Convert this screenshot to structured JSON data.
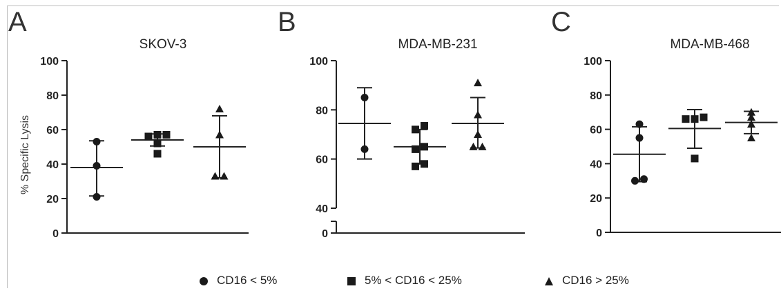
{
  "chart_data": [
    {
      "type": "scatter",
      "panel_label": "A",
      "title": "SKOV-3",
      "ylabel": "% Specific Lysis",
      "xlabel": "",
      "ylim": [
        0,
        100
      ],
      "yticks": [
        "0",
        "20",
        "40",
        "60",
        "80",
        "100"
      ],
      "axis_break": false,
      "groups": [
        {
          "name": "CD16 < 5%",
          "marker": "circle",
          "values": [
            21,
            39,
            53
          ],
          "mean": 38,
          "sd_low": 21.5,
          "sd_high": 53.5
        },
        {
          "name": "5% < CD16 < 25%",
          "marker": "square",
          "values": [
            46,
            52,
            56,
            57,
            57
          ],
          "mean": 54,
          "sd_low": 50.5,
          "sd_high": 57.5
        },
        {
          "name": "CD16 > 25%",
          "marker": "triangle",
          "values": [
            33,
            33,
            57,
            72
          ],
          "mean": 50,
          "sd_low": 32,
          "sd_high": 68
        }
      ]
    },
    {
      "type": "scatter",
      "panel_label": "B",
      "title": "MDA-MB-231",
      "ylabel": "",
      "xlabel": "",
      "ylim": [
        0,
        100
      ],
      "yticks": [
        "0",
        "40",
        "60",
        "80",
        "100"
      ],
      "axis_break": true,
      "groups": [
        {
          "name": "CD16 < 5%",
          "marker": "circle",
          "values": [
            64,
            85
          ],
          "mean": 74.5,
          "sd_low": 60,
          "sd_high": 89
        },
        {
          "name": "5% < CD16 < 25%",
          "marker": "square",
          "values": [
            57,
            58,
            64,
            65,
            72,
            73.5
          ],
          "mean": 65,
          "sd_low": 58,
          "sd_high": 72
        },
        {
          "name": "CD16 > 25%",
          "marker": "triangle",
          "values": [
            65,
            65,
            70,
            78,
            91
          ],
          "mean": 74.5,
          "sd_low": 64.5,
          "sd_high": 85
        }
      ]
    },
    {
      "type": "scatter",
      "panel_label": "C",
      "title": "MDA-MB-468",
      "ylabel": "",
      "xlabel": "",
      "ylim": [
        0,
        100
      ],
      "yticks": [
        "0",
        "20",
        "40",
        "60",
        "80",
        "100"
      ],
      "axis_break": false,
      "groups": [
        {
          "name": "CD16 < 5%",
          "marker": "circle",
          "values": [
            30,
            31,
            55,
            63
          ],
          "mean": 45.5,
          "sd_low": 29.5,
          "sd_high": 61.5
        },
        {
          "name": "5% < CD16 < 25%",
          "marker": "square",
          "values": [
            43,
            66,
            66,
            67
          ],
          "mean": 60.5,
          "sd_low": 49,
          "sd_high": 71.5
        },
        {
          "name": "CD16 > 25%",
          "marker": "triangle",
          "values": [
            55,
            63,
            67,
            70
          ],
          "mean": 64,
          "sd_low": 57.5,
          "sd_high": 70.5
        }
      ]
    }
  ],
  "legend": {
    "placement": "bottom",
    "items": [
      {
        "marker": "circle",
        "label": "CD16 < 5%"
      },
      {
        "marker": "square",
        "label": "5% < CD16 < 25%"
      },
      {
        "marker": "triangle",
        "label": "CD16 > 25%"
      }
    ]
  },
  "colors": {
    "marker": "#1a1a1a",
    "axis": "#222222",
    "frame": "#bbbbbb"
  }
}
